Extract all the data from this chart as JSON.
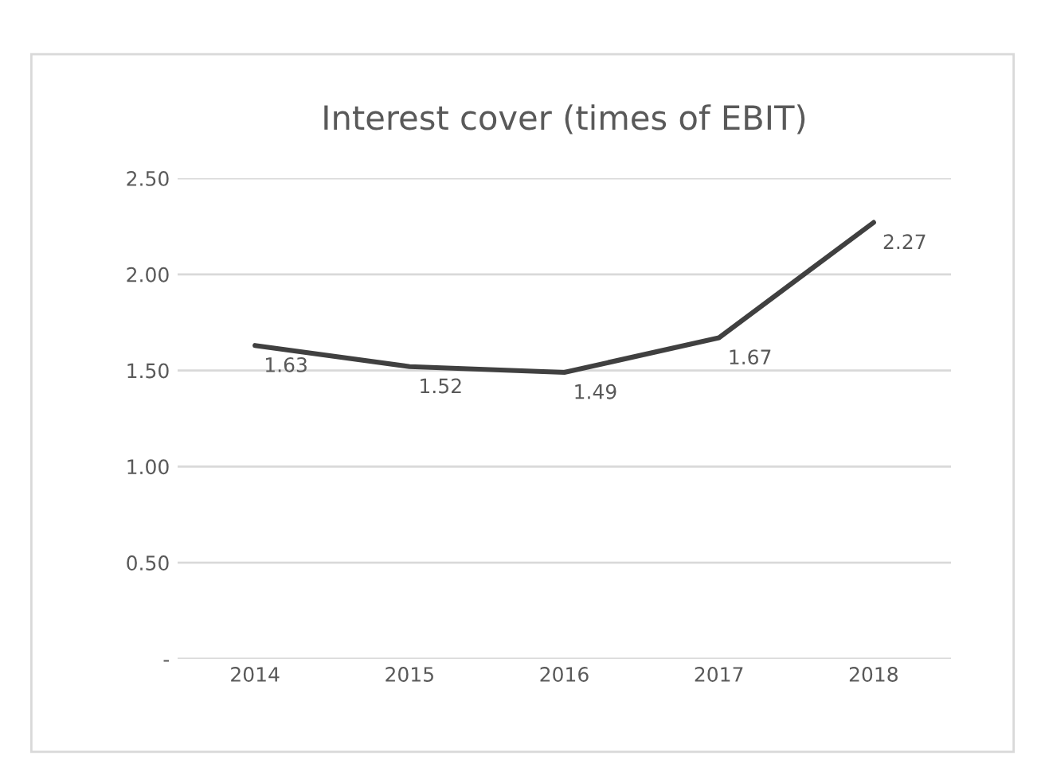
{
  "chart_data": {
    "type": "line",
    "title": "Interest cover (times of EBIT)",
    "categories": [
      "2014",
      "2015",
      "2016",
      "2017",
      "2018"
    ],
    "series": [
      {
        "color": "#404040",
        "values": [
          1.63,
          1.52,
          1.49,
          1.67,
          2.27
        ]
      }
    ],
    "ylim": [
      0,
      2.5
    ],
    "yticks": [
      {
        "value": 0,
        "label": "-"
      },
      {
        "value": 0.5,
        "label": "0.50"
      },
      {
        "value": 1.0,
        "label": "1.00"
      },
      {
        "value": 1.5,
        "label": "1.50"
      },
      {
        "value": 2.0,
        "label": "2.00"
      },
      {
        "value": 2.5,
        "label": "2.50"
      }
    ],
    "grid": "y",
    "data_labels": true
  }
}
